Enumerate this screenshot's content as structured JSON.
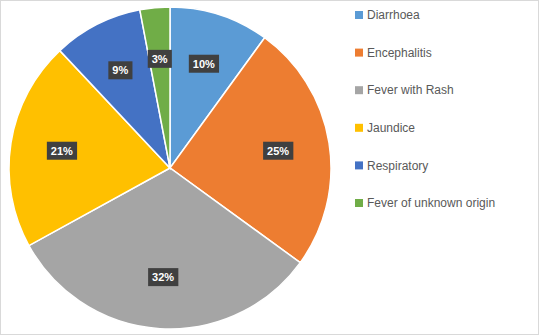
{
  "chart_data": {
    "type": "pie",
    "categories": [
      "Diarrhoea",
      "Encephalitis",
      "Fever with Rash",
      "Jaundice",
      "Respiratory",
      "Fever of unknown origin"
    ],
    "values": [
      10,
      25,
      32,
      21,
      9,
      3
    ],
    "value_labels": [
      "10%",
      "25%",
      "32%",
      "21%",
      "9%",
      "3%"
    ],
    "colors": [
      "#5b9bd5",
      "#ed7d31",
      "#a5a5a5",
      "#ffc000",
      "#4472c4",
      "#70ad47"
    ],
    "data_labels": true,
    "legend": "right"
  }
}
